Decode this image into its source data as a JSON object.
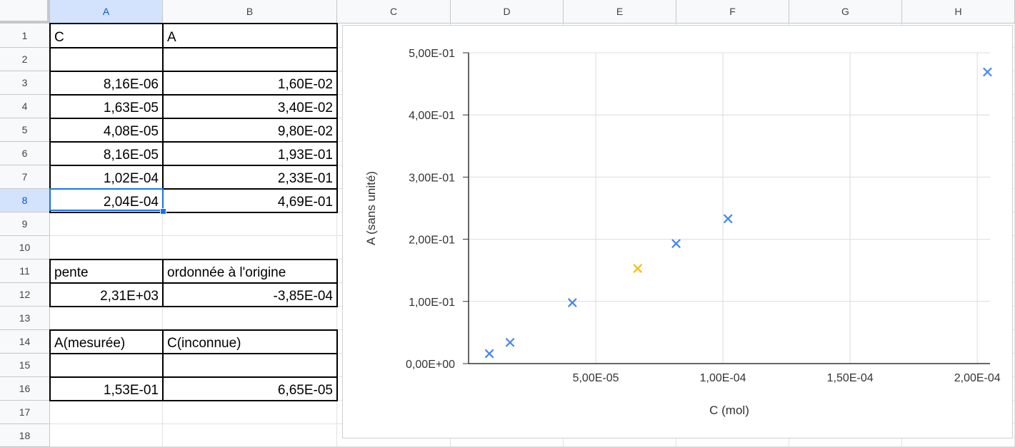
{
  "columns": [
    "A",
    "B",
    "C",
    "D",
    "E",
    "F",
    "G",
    "H"
  ],
  "rows": [
    "1",
    "2",
    "3",
    "4",
    "5",
    "6",
    "7",
    "8",
    "9",
    "10",
    "11",
    "12",
    "13",
    "14",
    "15",
    "16",
    "17",
    "18"
  ],
  "cells": {
    "A1": "C",
    "B1": "A",
    "A3": "8,16E-06",
    "B3": "1,60E-02",
    "A4": "1,63E-05",
    "B4": "3,40E-02",
    "A5": "4,08E-05",
    "B5": "9,80E-02",
    "A6": "8,16E-05",
    "B6": "1,93E-01",
    "A7": "1,02E-04",
    "B7": "2,33E-01",
    "A8": "2,04E-04",
    "B8": "4,69E-01",
    "A11": "pente",
    "B11": "ordonnée à l'origine",
    "A12": "2,31E+03",
    "B12": "-3,85E-04",
    "A14": "A(mesurée)",
    "B14": "C(inconnue)",
    "A16": "1,53E-01",
    "B16": "6,65E-05"
  },
  "selected_cell": "A8",
  "chart_data": {
    "type": "scatter",
    "xlabel": "C (mol)",
    "ylabel": "A (sans unité)",
    "xlim": [
      0,
      0.000205
    ],
    "ylim": [
      0,
      0.5
    ],
    "x_ticks": [
      5e-05,
      0.0001,
      0.00015,
      0.0002
    ],
    "x_tick_labels": [
      "5,00E-05",
      "1,00E-04",
      "1,50E-04",
      "2,00E-04"
    ],
    "y_ticks": [
      0,
      0.1,
      0.2,
      0.3,
      0.4,
      0.5
    ],
    "y_tick_labels": [
      "0,00E+00",
      "1,00E-01",
      "2,00E-01",
      "3,00E-01",
      "4,00E-01",
      "5,00E-01"
    ],
    "grid": true,
    "marker": "x",
    "series": [
      {
        "color": "#4285f4",
        "points": [
          [
            8.16e-06,
            0.016
          ],
          [
            1.63e-05,
            0.034
          ],
          [
            4.08e-05,
            0.098
          ],
          [
            8.16e-05,
            0.193
          ],
          [
            0.000102,
            0.233
          ],
          [
            0.000204,
            0.469
          ]
        ]
      },
      {
        "color": "#fbbc04",
        "points": [
          [
            6.65e-05,
            0.153
          ]
        ]
      }
    ]
  }
}
